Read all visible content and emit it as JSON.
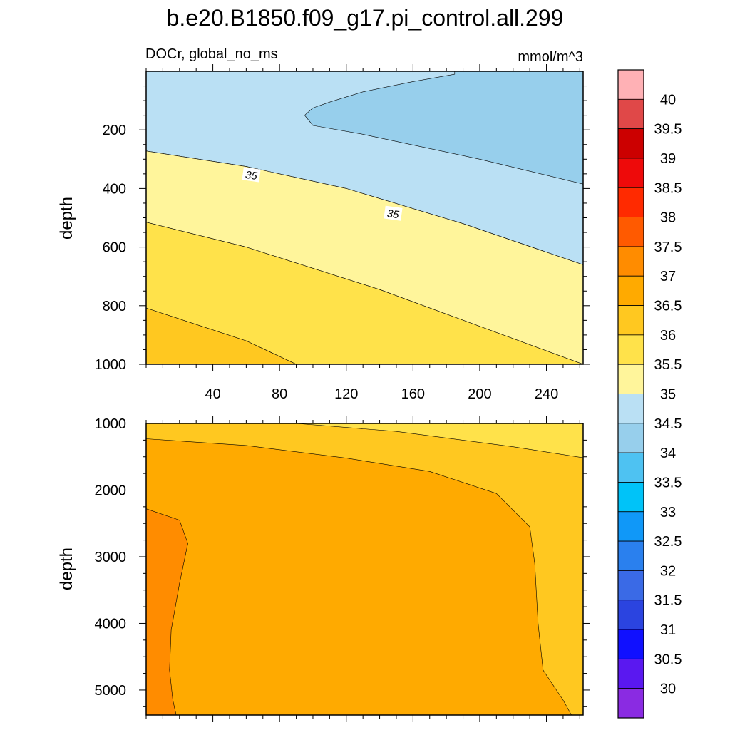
{
  "figure": {
    "title": "b.e20.B1850.f09_g17.pi_control.all.299",
    "left_subtitle": "DOCr, global_no_ms",
    "right_subtitle": "mmol/m^3"
  },
  "chart_data": [
    {
      "type": "contour",
      "panel": "upper",
      "ylabel": "depth",
      "xlabel": "",
      "x_ticks": [
        "40",
        "80",
        "120",
        "160",
        "200",
        "240"
      ],
      "x_tick_values": [
        40,
        80,
        120,
        160,
        200,
        240
      ],
      "xlim": [
        0,
        262
      ],
      "y_ticks": [
        "200",
        "400",
        "600",
        "800",
        "1000"
      ],
      "y_tick_values": [
        200,
        400,
        600,
        800,
        1000
      ],
      "ylim": [
        0,
        1000
      ],
      "y_reversed": true,
      "contour_labels": [
        {
          "text": "35",
          "x": 63,
          "y": 355
        },
        {
          "text": "35",
          "x": 148,
          "y": 487
        }
      ],
      "regions": [
        {
          "name": "34.5 to 35",
          "color": "#bae0f4",
          "points": [
            [
              0,
              0
            ],
            [
              262,
              0
            ],
            [
              262,
              660
            ],
            [
              190,
              520
            ],
            [
              120,
              400
            ],
            [
              60,
              325
            ],
            [
              0,
              272
            ]
          ]
        },
        {
          "name": "34 to 34.5",
          "color": "#97cfec",
          "points": [
            [
              262,
              0
            ],
            [
              262,
              385
            ],
            [
              200,
              300
            ],
            [
              130,
              215
            ],
            [
              100,
              185
            ],
            [
              95,
              150
            ],
            [
              100,
              125
            ],
            [
              110,
              105
            ],
            [
              130,
              70
            ],
            [
              160,
              35
            ],
            [
              185,
              10
            ],
            [
              185,
              0
            ]
          ]
        },
        {
          "name": "35 to 35.5",
          "color": "#fff59b",
          "points": [
            [
              0,
              272
            ],
            [
              60,
              325
            ],
            [
              120,
              400
            ],
            [
              190,
              520
            ],
            [
              262,
              660
            ],
            [
              262,
              1000
            ],
            [
              140,
              745
            ],
            [
              60,
              600
            ],
            [
              0,
              515
            ]
          ]
        },
        {
          "name": "35.5 to 36",
          "color": "#ffe24a",
          "points": [
            [
              0,
              515
            ],
            [
              60,
              600
            ],
            [
              140,
              745
            ],
            [
              262,
              1000
            ],
            [
              90,
              1000
            ],
            [
              60,
              920
            ],
            [
              0,
              808
            ]
          ]
        },
        {
          "name": "36 to 36.5",
          "color": "#ffc820",
          "points": [
            [
              0,
              808
            ],
            [
              60,
              920
            ],
            [
              90,
              1000
            ],
            [
              0,
              1000
            ]
          ]
        }
      ]
    },
    {
      "type": "contour",
      "panel": "lower",
      "ylabel": "depth",
      "xlabel": "",
      "x_tick_values": [
        40,
        80,
        120,
        160,
        200,
        240
      ],
      "xlim": [
        0,
        262
      ],
      "y_ticks": [
        "1000",
        "2000",
        "3000",
        "4000",
        "5000"
      ],
      "y_tick_values": [
        1000,
        2000,
        3000,
        4000,
        5000
      ],
      "ylim": [
        1000,
        5375
      ],
      "y_reversed": true,
      "regions": [
        {
          "name": "36 to 36.5",
          "color": "#ffc820",
          "points": [
            [
              0,
              1000
            ],
            [
              262,
              1000
            ],
            [
              262,
              5375
            ],
            [
              0,
              5375
            ]
          ]
        },
        {
          "name": "35.5 to 36",
          "color": "#ffe24a",
          "points": [
            [
              90,
              1000
            ],
            [
              262,
              1000
            ],
            [
              262,
              1515
            ],
            [
              220,
              1350
            ],
            [
              150,
              1120
            ]
          ]
        },
        {
          "name": "36.5 to 37",
          "color": "#ffaa00",
          "points": [
            [
              0,
              1230
            ],
            [
              60,
              1330
            ],
            [
              120,
              1520
            ],
            [
              170,
              1720
            ],
            [
              210,
              2050
            ],
            [
              230,
              2550
            ],
            [
              233,
              3100
            ],
            [
              235,
              4000
            ],
            [
              238,
              4700
            ],
            [
              250,
              5150
            ],
            [
              255,
              5375
            ],
            [
              0,
              5375
            ]
          ]
        },
        {
          "name": "37 to 37.5",
          "color": "#ff8c00",
          "points": [
            [
              0,
              2280
            ],
            [
              20,
              2450
            ],
            [
              25,
              2800
            ],
            [
              20,
              3400
            ],
            [
              15,
              4100
            ],
            [
              14,
              4700
            ],
            [
              16,
              5150
            ],
            [
              18,
              5375
            ],
            [
              0,
              5375
            ]
          ]
        }
      ]
    }
  ],
  "colorbar": {
    "levels": [
      "30",
      "30.5",
      "31",
      "31.5",
      "32",
      "32.5",
      "33",
      "33.5",
      "34",
      "34.5",
      "35",
      "35.5",
      "36",
      "36.5",
      "37",
      "37.5",
      "38",
      "38.5",
      "39",
      "39.5",
      "40"
    ],
    "colors": [
      "#8a2be2",
      "#5a18f0",
      "#1010ff",
      "#2b44e0",
      "#3a6ae6",
      "#2a80ee",
      "#1098f8",
      "#00c3f8",
      "#4ec2f2",
      "#97cfec",
      "#bae0f4",
      "#fff59b",
      "#ffe24a",
      "#ffc820",
      "#ffaa00",
      "#ff8c00",
      "#ff5a00",
      "#ff2a00",
      "#ee0a0a",
      "#cc0000",
      "#e04848",
      "#ffb1b5"
    ]
  }
}
